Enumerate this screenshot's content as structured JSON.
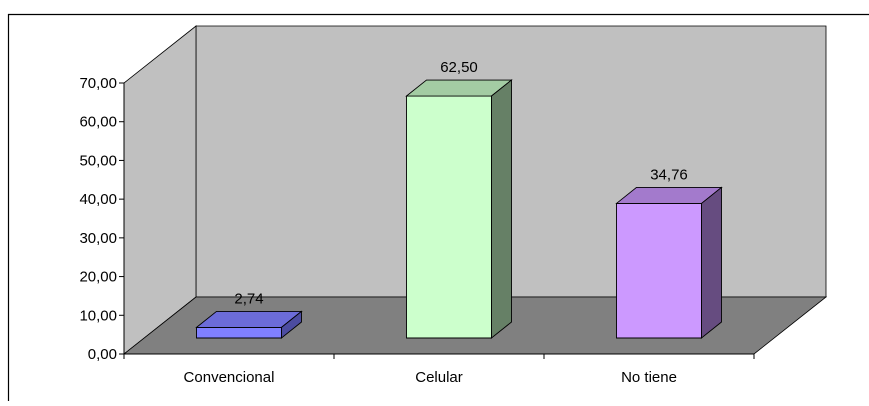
{
  "chart_data": {
    "type": "bar",
    "title": "",
    "xlabel": "",
    "ylabel": "",
    "categories": [
      "Convencional",
      "Celular",
      "No tiene"
    ],
    "values": [
      2.74,
      62.5,
      34.76
    ],
    "data_labels": [
      "2,74",
      "62,50",
      "34,76"
    ],
    "ylim": [
      0,
      70
    ],
    "yticks": [
      "0,00",
      "10,00",
      "20,00",
      "30,00",
      "40,00",
      "50,00",
      "60,00",
      "70,00"
    ],
    "grid": false,
    "legend": "none",
    "three_d": true,
    "colors": {
      "wall": "#c0c0c0",
      "floor": "#808080",
      "bars": [
        {
          "front": "#8080ff",
          "top": "#6c6cd8",
          "side": "#4c4ca0"
        },
        {
          "front": "#ccffcc",
          "top": "#a3cca3",
          "side": "#668066"
        },
        {
          "front": "#cc99ff",
          "top": "#a37acc",
          "side": "#664c80"
        }
      ]
    }
  }
}
